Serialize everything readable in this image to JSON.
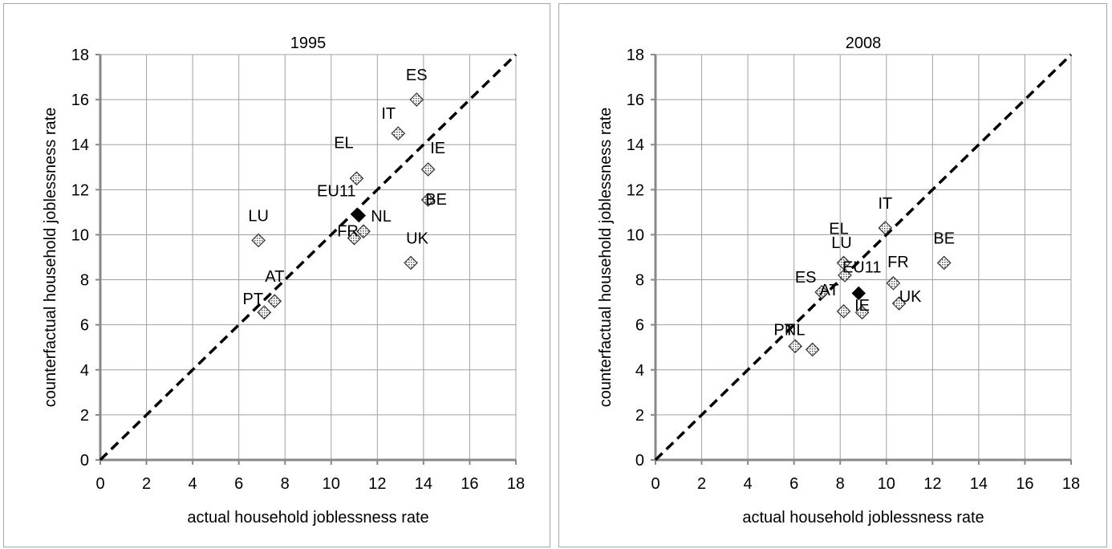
{
  "chart_data": [
    {
      "type": "scatter",
      "title": "1995",
      "xlabel": "actual household joblessness rate",
      "ylabel": "counterfactual household joblessness rate",
      "xlim": [
        0,
        18
      ],
      "ylim": [
        0,
        18
      ],
      "ticks": [
        "0",
        "2",
        "4",
        "6",
        "8",
        "10",
        "12",
        "14",
        "16",
        "18"
      ],
      "grid": true,
      "reference_line": "y = x (dashed)",
      "series": [
        {
          "points": [
            {
              "label": "ES",
              "x": 13.7,
              "y": 16.0
            },
            {
              "label": "IT",
              "x": 12.9,
              "y": 14.5
            },
            {
              "label": "IE",
              "x": 14.2,
              "y": 12.9
            },
            {
              "label": "BE",
              "x": 14.2,
              "y": 11.55
            },
            {
              "label": "EL",
              "x": 11.1,
              "y": 12.5
            },
            {
              "label": "LU",
              "x": 6.85,
              "y": 9.75
            },
            {
              "label": "NL",
              "x": 11.4,
              "y": 10.15
            },
            {
              "label": "FR",
              "x": 11.0,
              "y": 9.85
            },
            {
              "label": "UK",
              "x": 13.45,
              "y": 8.75
            },
            {
              "label": "AT",
              "x": 7.55,
              "y": 7.05
            },
            {
              "label": "PT",
              "x": 7.1,
              "y": 6.55
            }
          ]
        },
        {
          "points": [
            {
              "label": "EU11",
              "x": 11.2,
              "y": 10.85
            }
          ]
        }
      ]
    },
    {
      "type": "scatter",
      "title": "2008",
      "xlabel": "actual household joblessness rate",
      "ylabel": "counterfactual household joblessness rate",
      "xlim": [
        0,
        18
      ],
      "ylim": [
        0,
        18
      ],
      "ticks": [
        "0",
        "2",
        "4",
        "6",
        "8",
        "10",
        "12",
        "14",
        "16",
        "18"
      ],
      "grid": true,
      "reference_line": "y = x (dashed)",
      "series": [
        {
          "points": [
            {
              "label": "IT",
              "x": 9.95,
              "y": 10.3
            },
            {
              "label": "BE",
              "x": 12.5,
              "y": 8.75
            },
            {
              "label": "EL",
              "x": 8.15,
              "y": 8.75
            },
            {
              "label": "LU",
              "x": 8.2,
              "y": 8.2
            },
            {
              "label": "ES",
              "x": 7.2,
              "y": 7.45
            },
            {
              "label": "FR",
              "x": 10.3,
              "y": 7.85
            },
            {
              "label": "UK",
              "x": 10.55,
              "y": 6.95
            },
            {
              "label": "AT",
              "x": 8.15,
              "y": 6.6
            },
            {
              "label": "IE",
              "x": 8.95,
              "y": 6.55
            },
            {
              "label": "PT",
              "x": 6.05,
              "y": 5.05
            },
            {
              "label": "NL",
              "x": 6.8,
              "y": 4.9
            }
          ]
        },
        {
          "points": [
            {
              "label": "EU11",
              "x": 8.8,
              "y": 7.4
            }
          ]
        }
      ]
    }
  ]
}
